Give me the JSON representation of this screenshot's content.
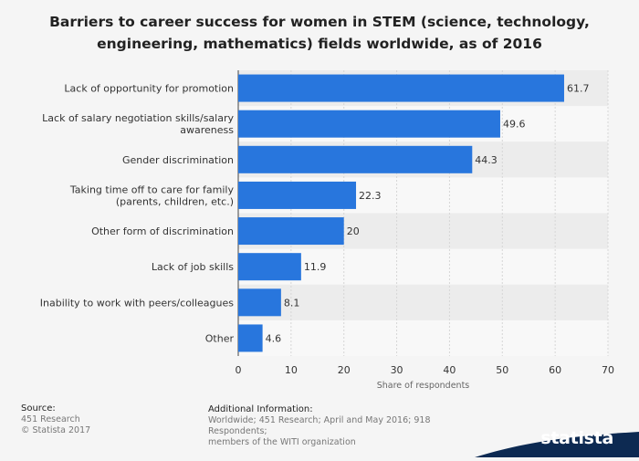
{
  "title_line1": "Barriers to career success for women in STEM (science, technology,",
  "title_line2": "engineering, mathematics) fields worldwide, as of 2016",
  "source": {
    "heading": "Source:",
    "line1": "451 Research",
    "line2": "© Statista 2017"
  },
  "additional_info": {
    "heading": "Additional Information:",
    "line1": "Worldwide; 451 Research; April and May 2016; 918 Respondents;",
    "line2": "members of the WITI organization"
  },
  "brand": {
    "name": "statista",
    "color": "#0d2a52"
  },
  "chart_data": {
    "type": "bar",
    "orientation": "horizontal",
    "categories": [
      [
        "Lack of opportunity for promotion"
      ],
      [
        "Lack of salary negotiation skills/salary",
        "awareness"
      ],
      [
        "Gender discrimination"
      ],
      [
        "Taking time off to care for family",
        "(parents, children, etc.)"
      ],
      [
        "Other form of discrimination"
      ],
      [
        "Lack of job skills"
      ],
      [
        "Inability to work with peers/colleagues"
      ],
      [
        "Other"
      ]
    ],
    "values": [
      61.7,
      49.6,
      44.3,
      22.3,
      20,
      11.9,
      8.1,
      4.6
    ],
    "value_labels": [
      "61.7",
      "49.6",
      "44.3",
      "22.3",
      "20",
      "11.9",
      "8.1",
      "4.6"
    ],
    "xlabel": "Share of respondents",
    "xlim": [
      0,
      70
    ],
    "xticks": [
      0,
      10,
      20,
      30,
      40,
      50,
      60,
      70
    ],
    "bar_color": "#2876dd",
    "grid": true
  }
}
